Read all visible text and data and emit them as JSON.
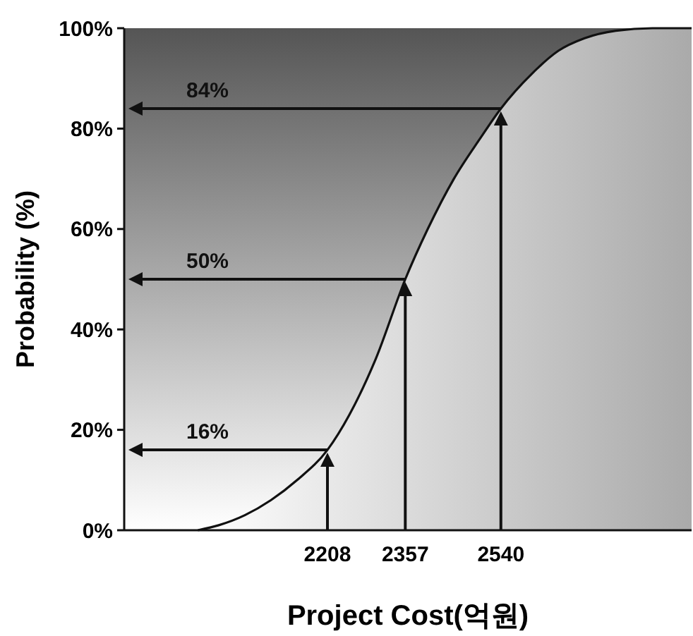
{
  "chart_data": {
    "type": "area",
    "xlabel": "Project Cost(억원)",
    "ylabel": "Probability (%)",
    "x": [
      1960,
      2000,
      2050,
      2100,
      2150,
      2208,
      2250,
      2300,
      2357,
      2400,
      2450,
      2500,
      2540,
      2600,
      2650,
      2700,
      2760,
      2830,
      2905
    ],
    "series": [
      {
        "color": "#111111",
        "values": [
          0,
          1,
          3,
          6,
          10,
          16,
          23,
          34,
          50,
          60,
          70,
          78,
          84,
          91,
          95.5,
          98,
          99.5,
          100,
          100
        ]
      }
    ],
    "xlim": [
      1819,
      2905
    ],
    "ylim": [
      0,
      100
    ],
    "xticks": [
      2208,
      2357,
      2540
    ],
    "yticks": [
      {
        "value": 0,
        "label": "0%"
      },
      {
        "value": 20,
        "label": "20%"
      },
      {
        "value": 40,
        "label": "40%"
      },
      {
        "value": 60,
        "label": "60%"
      },
      {
        "value": 80,
        "label": "80%"
      },
      {
        "value": 100,
        "label": "100%"
      }
    ],
    "ref_lines": [
      {
        "axis": "y",
        "value": 16,
        "label": "16%"
      },
      {
        "axis": "y",
        "value": 50,
        "label": "50%"
      },
      {
        "axis": "y",
        "value": 84,
        "label": "84%"
      },
      {
        "axis": "x",
        "value": 2208
      },
      {
        "axis": "x",
        "value": 2357
      },
      {
        "axis": "x",
        "value": 2540
      }
    ],
    "marker": "none",
    "line_style": "solid"
  }
}
